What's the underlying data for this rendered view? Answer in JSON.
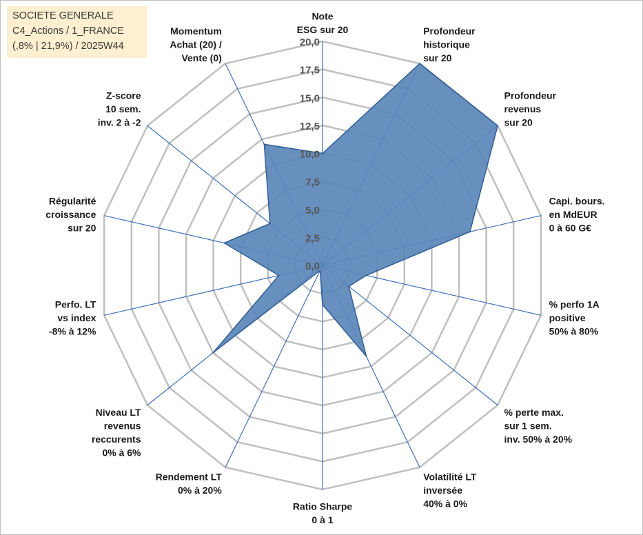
{
  "info": {
    "line1": "SOCIETE GENERALE",
    "line2": "C4_Actions / 1_FRANCE",
    "line3": "(,8% | 21,9%) / 2025W44"
  },
  "chart_data": {
    "type": "radar",
    "range": [
      0,
      20
    ],
    "ticks": [
      "0,0",
      "2,5",
      "5,0",
      "7,5",
      "10,0",
      "12,5",
      "15,0",
      "17,5",
      "20,0"
    ],
    "grid_color": "#bfbfbf",
    "spoke_color": "#3e6fb5",
    "series_fill": "#5b87b8",
    "series_stroke": "#2f5d96",
    "axes": [
      {
        "label": [
          "Note",
          "ESG sur 20"
        ],
        "value": 10.0
      },
      {
        "label": [
          "Profondeur",
          "historique",
          "sur 20"
        ],
        "value": 20.0
      },
      {
        "label": [
          "Profondeur",
          "revenus",
          "sur 20"
        ],
        "value": 20.0
      },
      {
        "label": [
          "Capi. bours.",
          "en MdEUR",
          "0 à 60 G€"
        ],
        "value": 13.5
      },
      {
        "label": [
          "% perfo 1A",
          "positive",
          "50% à 80%"
        ],
        "value": 4.0
      },
      {
        "label": [
          "% perte max.",
          "sur 1 sem.",
          "inv. 50% à 20%"
        ],
        "value": 3.0
      },
      {
        "label": [
          "Volatilité LT",
          "inversée",
          "40% à 0%"
        ],
        "value": 9.0
      },
      {
        "label": [
          "Ratio Sharpe",
          "0 à 1"
        ],
        "value": 3.5
      },
      {
        "label": [
          "Rendement LT",
          "0% à 20%"
        ],
        "value": 0.5
      },
      {
        "label": [
          "Niveau LT",
          "revenus",
          "reccurents",
          "0% à 6%"
        ],
        "value": 12.5
      },
      {
        "label": [
          "Perfo. LT",
          "vs index",
          "-8% à 12%"
        ],
        "value": 4.0
      },
      {
        "label": [
          "Régularité",
          "croissance",
          "sur 20"
        ],
        "value": 9.0
      },
      {
        "label": [
          "Z-score",
          "10 sem.",
          "inv. 2 à -2"
        ],
        "value": 6.0
      },
      {
        "label": [
          "Momentum",
          "Achat (20) /",
          "Vente (0)"
        ],
        "value": 12.0
      }
    ]
  }
}
